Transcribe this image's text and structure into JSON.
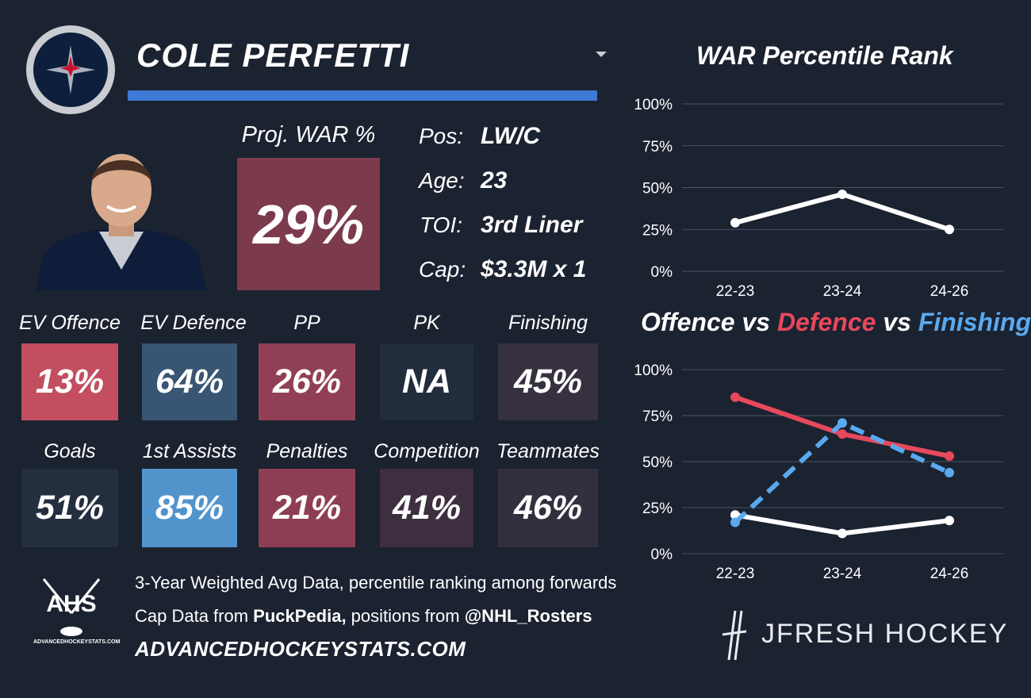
{
  "player": {
    "name": "COLE PERFETTI"
  },
  "colors": {
    "background": "#1b2230",
    "accent_bar": "#3f7ad6",
    "offence_line": "#ffffff",
    "defence_line": "#e8485c",
    "finishing_line": "#5aa9ef"
  },
  "war": {
    "label": "Proj. WAR %",
    "value": "29%",
    "color": "#7b3b4d"
  },
  "info": [
    {
      "label": "Pos:",
      "value": "LW/C"
    },
    {
      "label": "Age:",
      "value": "23"
    },
    {
      "label": "TOI:",
      "value": "3rd Liner"
    },
    {
      "label": "Cap:",
      "value": "$3.3M x 1"
    }
  ],
  "stats_row1": [
    {
      "label": "EV Offence",
      "value": "13%",
      "color": "#c24e60"
    },
    {
      "label": "EV Defence",
      "value": "64%",
      "color": "#385573"
    },
    {
      "label": "PP",
      "value": "26%",
      "color": "#913f55"
    },
    {
      "label": "PK",
      "value": "NA",
      "color": "#212d3c"
    },
    {
      "label": "Finishing",
      "value": "45%",
      "color": "#36303f"
    }
  ],
  "stats_row2": [
    {
      "label": "Goals",
      "value": "51%",
      "color": "#232e3e"
    },
    {
      "label": "1st Assists",
      "value": "85%",
      "color": "#5194cc"
    },
    {
      "label": "Penalties",
      "value": "21%",
      "color": "#8e3e53"
    },
    {
      "label": "Competition",
      "value": "41%",
      "color": "#3e2f40"
    },
    {
      "label": "Teammates",
      "value": "46%",
      "color": "#32303e"
    }
  ],
  "footer": {
    "line1": "3-Year Weighted Avg Data, percentile ranking among forwards",
    "line2_prefix": "Cap Data from ",
    "line2_bold1": "PuckPedia,",
    "line2_mid": " positions from ",
    "line2_bold2": "@NHL_Rosters",
    "site": "ADVANCEDHOCKEYSTATS.COM"
  },
  "ahs_logo": {
    "text": "AHS",
    "subtext": "ADVANCEDHOCKEYSTATS.COM"
  },
  "brand": {
    "text": "JFRESH HOCKEY"
  },
  "chart_titles": {
    "war": "WAR Percentile Rank",
    "ovd_part1": "Offence vs ",
    "ovd_part2": "Defence",
    "ovd_part3": " vs ",
    "ovd_part4": "Finishing"
  },
  "chart_data": [
    {
      "type": "line",
      "title": "WAR Percentile Rank",
      "categories": [
        "22-23",
        "23-24",
        "24-26"
      ],
      "series": [
        {
          "values": [
            29,
            46,
            25
          ],
          "color": "#ffffff"
        }
      ],
      "ylim": [
        0,
        100
      ],
      "yticks": [
        "0%",
        "25%",
        "50%",
        "75%",
        "100%"
      ],
      "grid": true
    },
    {
      "type": "line",
      "title": "Offence vs Defence vs Finishing",
      "categories": [
        "22-23",
        "23-24",
        "24-26"
      ],
      "series": [
        {
          "name": "Offence",
          "values": [
            21,
            11,
            18
          ],
          "color": "#ffffff",
          "dash": false
        },
        {
          "name": "Defence",
          "values": [
            85,
            65,
            53
          ],
          "color": "#e8485c",
          "dash": false
        },
        {
          "name": "Finishing",
          "values": [
            17,
            71,
            44
          ],
          "color": "#5aa9ef",
          "dash": true
        }
      ],
      "ylim": [
        0,
        100
      ],
      "yticks": [
        "0%",
        "25%",
        "50%",
        "75%",
        "100%"
      ],
      "grid": true
    }
  ]
}
